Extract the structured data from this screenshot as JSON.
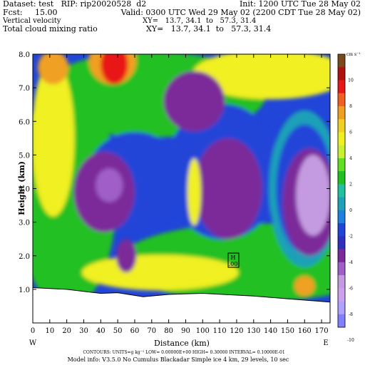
{
  "header": {
    "dataset_line": "Dataset: test   RIP: rip20020528  d2",
    "init_line": "Init: 1200 UTC Tue 28 May 02",
    "fcst_line": "Fcst:     15.00",
    "valid_line": "Valid: 0300 UTC Wed 29 May 02 (2200 CDT Tue 28 May 02)",
    "field1_name": "Vertical velocity",
    "field1_xy": "XY=   13.7, 34.1  to   57.3, 31.4",
    "field2_name": "Total cloud mixing ratio",
    "field2_xy": "XY=   13.7, 34.1  to   57.3, 31.4"
  },
  "footer": {
    "contours": "CONTOURS:   UNITS=g kg⁻¹   LOW= 0.00000E+00   HIGH= 0.30000        INTERVAL=   0.10000E-01",
    "model_info": "Model info: V3.5.0 No Cumulus Blackadar  Simple ice     4 km,   29 levels,    10 sec"
  },
  "endpoints": {
    "left": "W",
    "right": "E"
  },
  "annotation": {
    "label": "H",
    "value": ".00"
  },
  "colors": {
    "purple": "#7b2a9a",
    "violet": "#a05fc8",
    "lilac": "#c49be0",
    "blue": "#2045d8",
    "cyan": "#1fa0b8",
    "green": "#20c020",
    "yellow": "#f0f020",
    "orange": "#f0a020",
    "red": "#e81818",
    "ground": "#ffffff"
  },
  "chart_data": {
    "type": "heatmap",
    "title": "Vertical velocity",
    "xlabel": "Distance (km)",
    "ylabel": "Height (km)",
    "xlim": [
      0,
      175
    ],
    "ylim": [
      0,
      8
    ],
    "xticks": [
      "0",
      "10",
      "20",
      "30",
      "40",
      "50",
      "60",
      "70",
      "80",
      "90",
      "100",
      "110",
      "120",
      "130",
      "140",
      "150",
      "160",
      "170"
    ],
    "yticks": [
      "0",
      "1.0",
      "2.0",
      "3.0",
      "4.0",
      "5.0",
      "6.0",
      "7.0",
      "8.0"
    ],
    "colorbar": {
      "unit": "cm s⁻¹",
      "labels": [
        "10",
        "8",
        "6",
        "4",
        "2",
        "0",
        "-2",
        "-4",
        "-6",
        "-8",
        "-10"
      ],
      "colors": [
        "#7a4a1a",
        "#b01010",
        "#e81818",
        "#f06020",
        "#f0a020",
        "#f0d020",
        "#f0f020",
        "#c8f030",
        "#60e020",
        "#20c020",
        "#20c0a0",
        "#1fa0b8",
        "#2080e0",
        "#2045d8",
        "#3030c0",
        "#7b2a9a",
        "#a05fc8",
        "#c49be0",
        "#d0a0f0",
        "#b0a0ff",
        "#8080ff"
      ]
    },
    "terrain_km": [
      [
        0,
        1.05
      ],
      [
        20,
        1.0
      ],
      [
        40,
        0.88
      ],
      [
        50,
        0.9
      ],
      [
        65,
        0.78
      ],
      [
        80,
        0.85
      ],
      [
        100,
        0.88
      ],
      [
        130,
        0.8
      ],
      [
        150,
        0.72
      ],
      [
        175,
        0.62
      ]
    ],
    "regions": [
      {
        "level": "purple",
        "center": [
          42,
          3.9
        ],
        "radius": [
          18,
          1.2
        ]
      },
      {
        "level": "violet",
        "center": [
          45,
          4.1
        ],
        "radius": [
          8,
          0.5
        ]
      },
      {
        "level": "purple",
        "center": [
          115,
          4.0
        ],
        "radius": [
          20,
          1.5
        ]
      },
      {
        "level": "purple",
        "center": [
          163,
          3.6
        ],
        "radius": [
          16,
          1.6
        ]
      },
      {
        "level": "lilac",
        "center": [
          165,
          3.8
        ],
        "radius": [
          10,
          1.2
        ]
      },
      {
        "level": "purple",
        "center": [
          55,
          2.0
        ],
        "radius": [
          6,
          0.5
        ]
      },
      {
        "level": "purple",
        "center": [
          95,
          6.6
        ],
        "radius": [
          18,
          0.9
        ]
      },
      {
        "level": "yellow",
        "center": [
          95,
          3.9
        ],
        "radius": [
          4,
          1.0
        ]
      },
      {
        "level": "orange",
        "center": [
          47,
          7.8
        ],
        "radius": [
          14,
          0.7
        ]
      },
      {
        "level": "red",
        "center": [
          48,
          7.7
        ],
        "radius": [
          8,
          0.6
        ]
      },
      {
        "level": "orange",
        "center": [
          12,
          7.6
        ],
        "radius": [
          9,
          0.5
        ]
      },
      {
        "level": "orange",
        "center": [
          160,
          1.1
        ],
        "radius": [
          6,
          0.3
        ]
      }
    ]
  }
}
